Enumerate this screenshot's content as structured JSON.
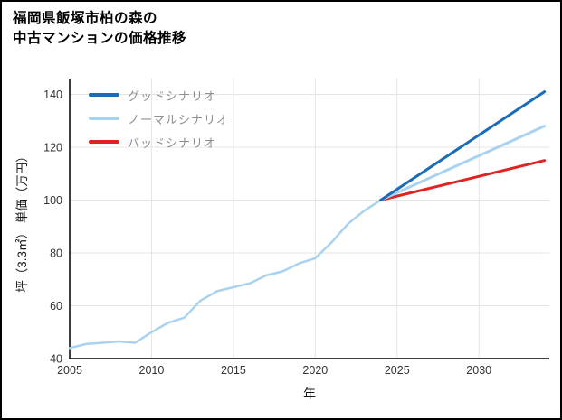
{
  "title": {
    "line1": "福岡県飯塚市柏の森の",
    "line2": "中古マンションの価格推移"
  },
  "legend": {
    "items": [
      {
        "label": "グッドシナリオ",
        "color": "#1a6cb8"
      },
      {
        "label": "ノーマルシナリオ",
        "color": "#a9d2f0"
      },
      {
        "label": "バッドシナリオ",
        "color": "#e02222"
      }
    ]
  },
  "chart_data": {
    "type": "line",
    "title": "福岡県飯塚市柏の森の中古マンションの価格推移",
    "xlabel": "年",
    "ylabel": "坪（3.3㎡） 単価（万円）",
    "xlim": [
      2005,
      2034.3
    ],
    "ylim": [
      40,
      146
    ],
    "xticks": [
      2005,
      2010,
      2015,
      2020,
      2025,
      2030
    ],
    "yticks": [
      40,
      60,
      80,
      100,
      120,
      140
    ],
    "grid": true,
    "grid_color": "#e4e4e4",
    "axis_color": "#000000",
    "legend_position": "top-left",
    "series": [
      {
        "name": "historical",
        "color": "#a9d2f0",
        "width": 2.5,
        "x": [
          2005,
          2006,
          2007,
          2008,
          2009,
          2010,
          2011,
          2012,
          2013,
          2014,
          2015,
          2016,
          2017,
          2018,
          2019,
          2020,
          2021,
          2022,
          2023,
          2024
        ],
        "values": [
          44,
          45.5,
          46,
          46.5,
          46,
          50,
          53.5,
          55.5,
          62,
          65.5,
          67,
          68.5,
          71.5,
          73,
          76,
          78,
          84,
          91,
          96,
          100
        ]
      },
      {
        "name": "バッドシナリオ",
        "color": "#e02222",
        "width": 3,
        "x": [
          2024,
          2034
        ],
        "values": [
          100,
          115
        ]
      },
      {
        "name": "ノーマルシナリオ",
        "color": "#a9d2f0",
        "width": 3,
        "x": [
          2024,
          2034
        ],
        "values": [
          100,
          128
        ]
      },
      {
        "name": "グッドシナリオ",
        "color": "#1a6cb8",
        "width": 3,
        "x": [
          2024,
          2034
        ],
        "values": [
          100,
          141
        ]
      }
    ]
  }
}
